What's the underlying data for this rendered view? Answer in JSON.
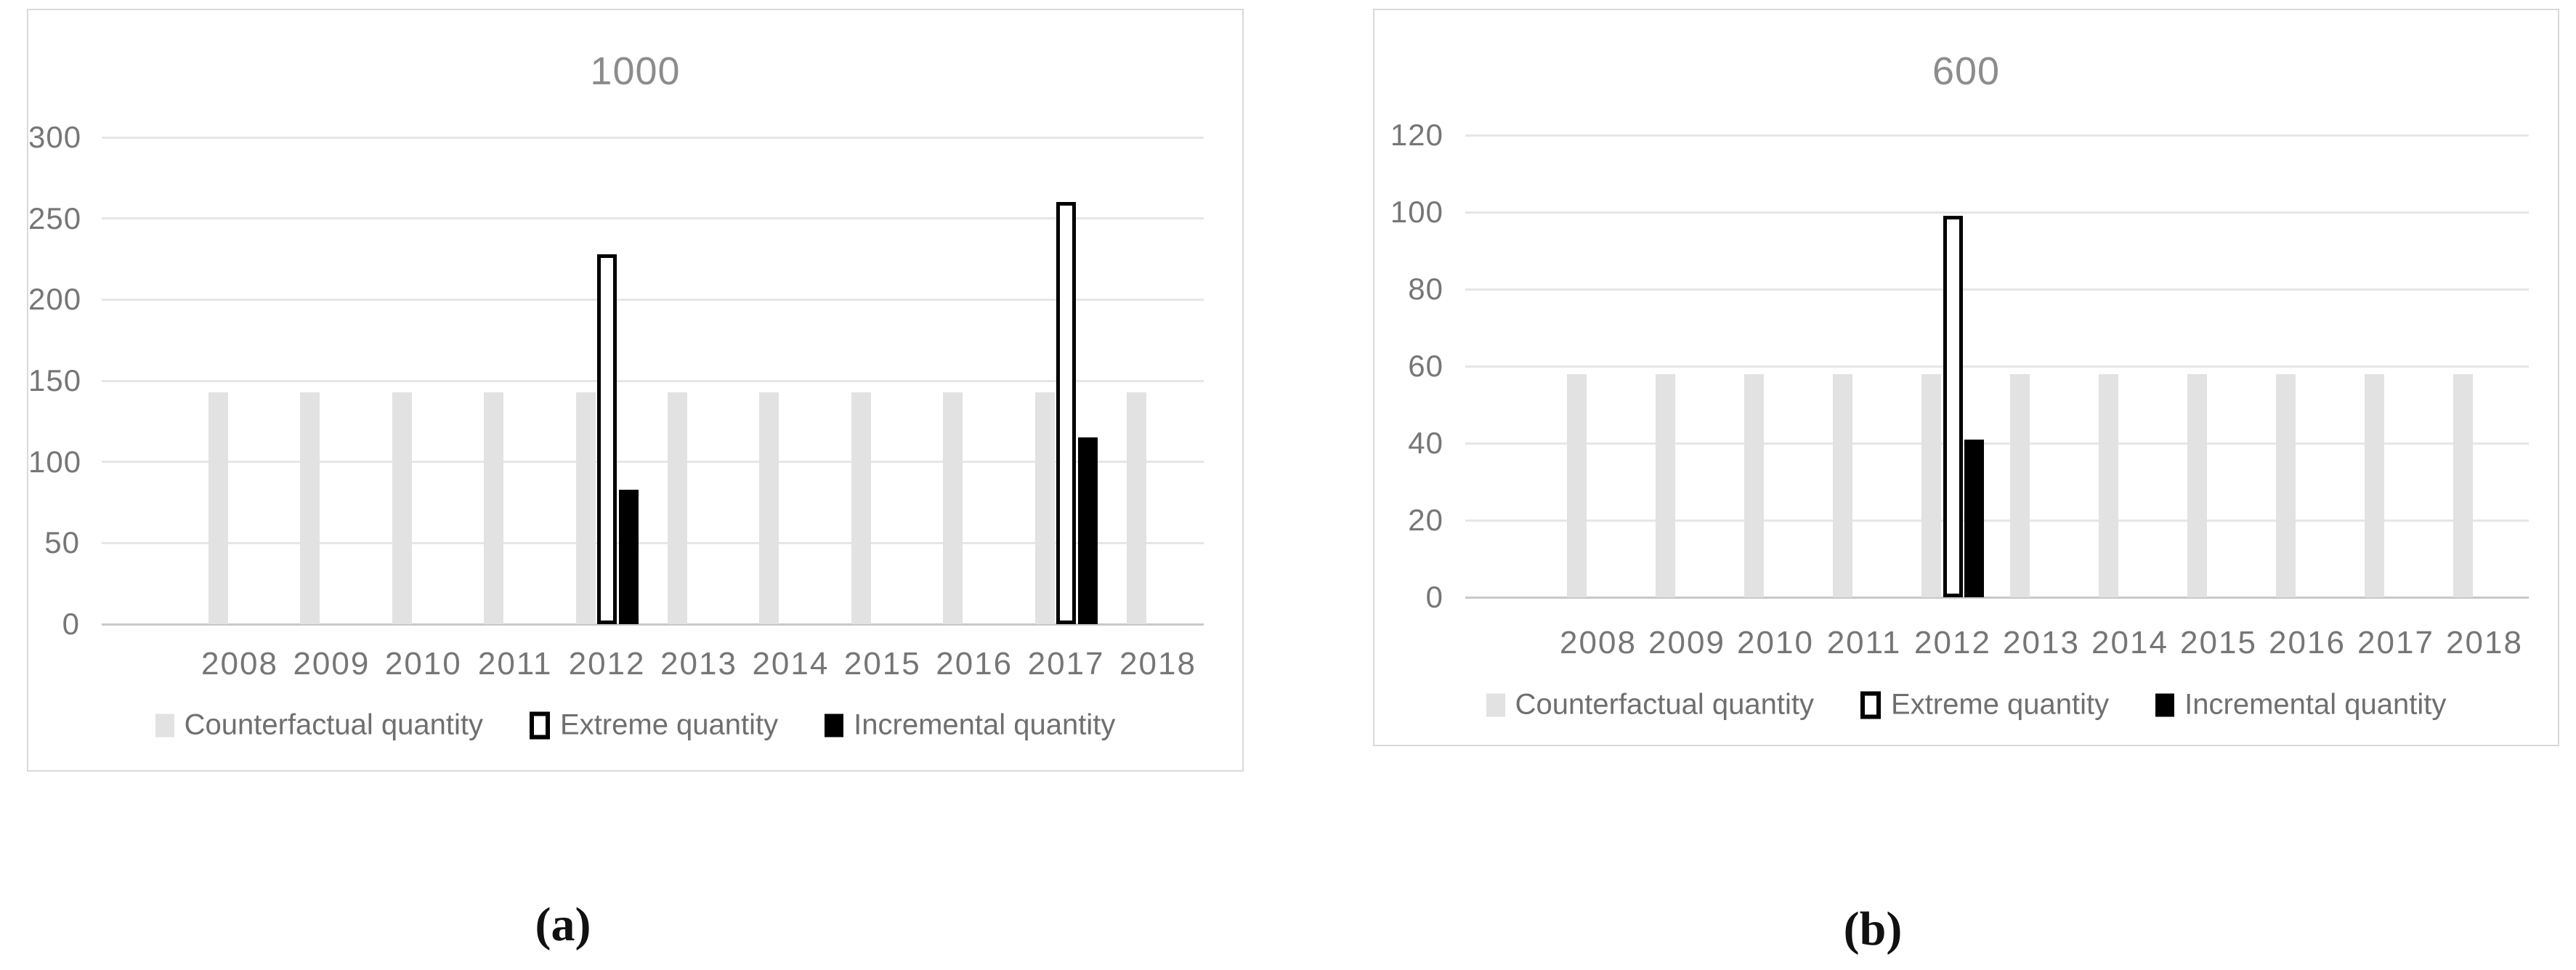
{
  "chart_data": [
    {
      "type": "bar",
      "panel": "a",
      "caption": "(a)",
      "title": "1000",
      "xlabel": "",
      "ylabel": "",
      "ylim": [
        0,
        300
      ],
      "yticks": [
        0,
        50,
        100,
        150,
        200,
        250,
        300
      ],
      "grid": true,
      "legend_position": "bottom",
      "categories": [
        "2008",
        "2009",
        "2010",
        "2011",
        "2012",
        "2013",
        "2014",
        "2015",
        "2016",
        "2017",
        "2018"
      ],
      "series": [
        {
          "name": "Counterfactual quantity",
          "values": [
            143,
            143,
            143,
            143,
            143,
            143,
            143,
            143,
            143,
            143,
            143
          ]
        },
        {
          "name": "Extreme quantity",
          "values": [
            0,
            0,
            0,
            0,
            228,
            0,
            0,
            0,
            0,
            260,
            0
          ]
        },
        {
          "name": "Incremental quantity",
          "values": [
            0,
            0,
            0,
            0,
            83,
            0,
            0,
            0,
            0,
            115,
            0
          ]
        }
      ]
    },
    {
      "type": "bar",
      "panel": "b",
      "caption": "(b)",
      "title": "600",
      "xlabel": "",
      "ylabel": "",
      "ylim": [
        0,
        120
      ],
      "yticks": [
        0,
        20,
        40,
        60,
        80,
        100,
        120
      ],
      "grid": true,
      "legend_position": "bottom",
      "categories": [
        "2008",
        "2009",
        "2010",
        "2011",
        "2012",
        "2013",
        "2014",
        "2015",
        "2016",
        "2017",
        "2018"
      ],
      "series": [
        {
          "name": "Counterfactual quantity",
          "values": [
            58,
            58,
            58,
            58,
            58,
            58,
            58,
            58,
            58,
            58,
            58
          ]
        },
        {
          "name": "Extreme quantity",
          "values": [
            0,
            0,
            0,
            0,
            99,
            0,
            0,
            0,
            0,
            0,
            0
          ]
        },
        {
          "name": "Incremental quantity",
          "values": [
            0,
            0,
            0,
            0,
            41,
            0,
            0,
            0,
            0,
            0,
            0
          ]
        }
      ]
    }
  ],
  "colors": {
    "counterfactual_fill": "#e2e2e2",
    "extreme_fill": "#ffffff",
    "extreme_border": "#000000",
    "incremental_fill": "#000000",
    "gridline": "#e6e6e6",
    "axis_line": "#c8c8c8",
    "panel_border": "#d9d9d9",
    "title_text": "#8c8c8c",
    "tick_text": "#767676",
    "legend_text": "#6f6f6f",
    "caption_text": "#111111"
  }
}
